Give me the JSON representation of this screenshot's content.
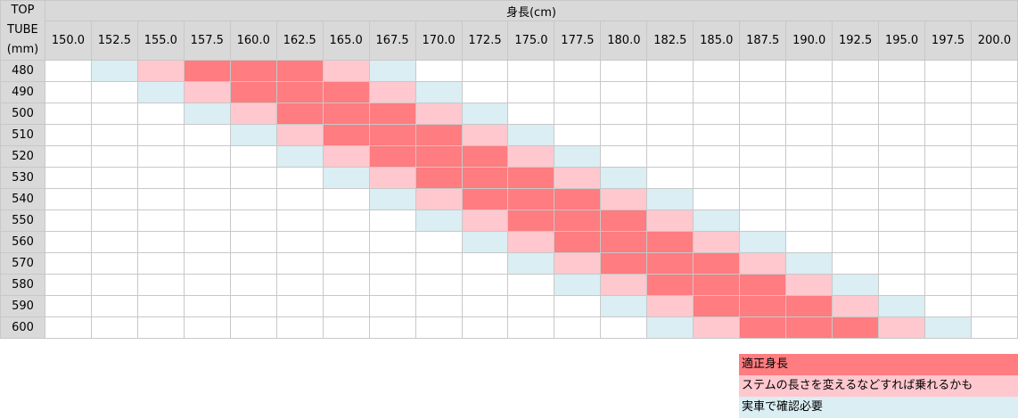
{
  "corner": {
    "line1": "TOP",
    "line2": "TUBE",
    "line3": "(mm)"
  },
  "header_title": "身長(cm)",
  "heights": [
    "150.0",
    "152.5",
    "155.0",
    "157.5",
    "160.0",
    "162.5",
    "165.0",
    "167.5",
    "170.0",
    "172.5",
    "175.0",
    "177.5",
    "180.0",
    "182.5",
    "185.0",
    "187.5",
    "190.0",
    "192.5",
    "195.0",
    "197.5",
    "200.0"
  ],
  "rows": [
    {
      "tube": "480",
      "levels": [
        0,
        1,
        2,
        3,
        3,
        3,
        2,
        1,
        0,
        0,
        0,
        0,
        0,
        0,
        0,
        0,
        0,
        0,
        0,
        0,
        0
      ]
    },
    {
      "tube": "490",
      "levels": [
        0,
        0,
        1,
        2,
        3,
        3,
        3,
        2,
        1,
        0,
        0,
        0,
        0,
        0,
        0,
        0,
        0,
        0,
        0,
        0,
        0
      ]
    },
    {
      "tube": "500",
      "levels": [
        0,
        0,
        0,
        1,
        2,
        3,
        3,
        3,
        2,
        1,
        0,
        0,
        0,
        0,
        0,
        0,
        0,
        0,
        0,
        0,
        0
      ]
    },
    {
      "tube": "510",
      "levels": [
        0,
        0,
        0,
        0,
        1,
        2,
        3,
        3,
        3,
        2,
        1,
        0,
        0,
        0,
        0,
        0,
        0,
        0,
        0,
        0,
        0
      ]
    },
    {
      "tube": "520",
      "levels": [
        0,
        0,
        0,
        0,
        0,
        1,
        2,
        3,
        3,
        3,
        2,
        1,
        0,
        0,
        0,
        0,
        0,
        0,
        0,
        0,
        0
      ]
    },
    {
      "tube": "530",
      "levels": [
        0,
        0,
        0,
        0,
        0,
        0,
        1,
        2,
        3,
        3,
        3,
        2,
        1,
        0,
        0,
        0,
        0,
        0,
        0,
        0,
        0
      ]
    },
    {
      "tube": "540",
      "levels": [
        0,
        0,
        0,
        0,
        0,
        0,
        0,
        1,
        2,
        3,
        3,
        3,
        2,
        1,
        0,
        0,
        0,
        0,
        0,
        0,
        0
      ]
    },
    {
      "tube": "550",
      "levels": [
        0,
        0,
        0,
        0,
        0,
        0,
        0,
        0,
        1,
        2,
        3,
        3,
        3,
        2,
        1,
        0,
        0,
        0,
        0,
        0,
        0
      ]
    },
    {
      "tube": "560",
      "levels": [
        0,
        0,
        0,
        0,
        0,
        0,
        0,
        0,
        0,
        1,
        2,
        3,
        3,
        3,
        2,
        1,
        0,
        0,
        0,
        0,
        0
      ]
    },
    {
      "tube": "570",
      "levels": [
        0,
        0,
        0,
        0,
        0,
        0,
        0,
        0,
        0,
        0,
        1,
        2,
        3,
        3,
        3,
        2,
        1,
        0,
        0,
        0,
        0
      ]
    },
    {
      "tube": "580",
      "levels": [
        0,
        0,
        0,
        0,
        0,
        0,
        0,
        0,
        0,
        0,
        0,
        1,
        2,
        3,
        3,
        3,
        2,
        1,
        0,
        0,
        0
      ]
    },
    {
      "tube": "590",
      "levels": [
        0,
        0,
        0,
        0,
        0,
        0,
        0,
        0,
        0,
        0,
        0,
        0,
        1,
        2,
        3,
        3,
        3,
        2,
        1,
        0,
        0
      ]
    },
    {
      "tube": "600",
      "levels": [
        0,
        0,
        0,
        0,
        0,
        0,
        0,
        0,
        0,
        0,
        0,
        0,
        0,
        1,
        2,
        3,
        3,
        3,
        2,
        1,
        0
      ]
    }
  ],
  "legend": {
    "fit": "適正身長",
    "adjust": "ステムの長さを変えるなどすれば乗れるかも",
    "check": "実車で確認必要"
  },
  "colors": {
    "fit": "#ff7c80",
    "adjust": "#ffc7ce",
    "check": "#daeef3",
    "header": "#d9d9d9"
  }
}
